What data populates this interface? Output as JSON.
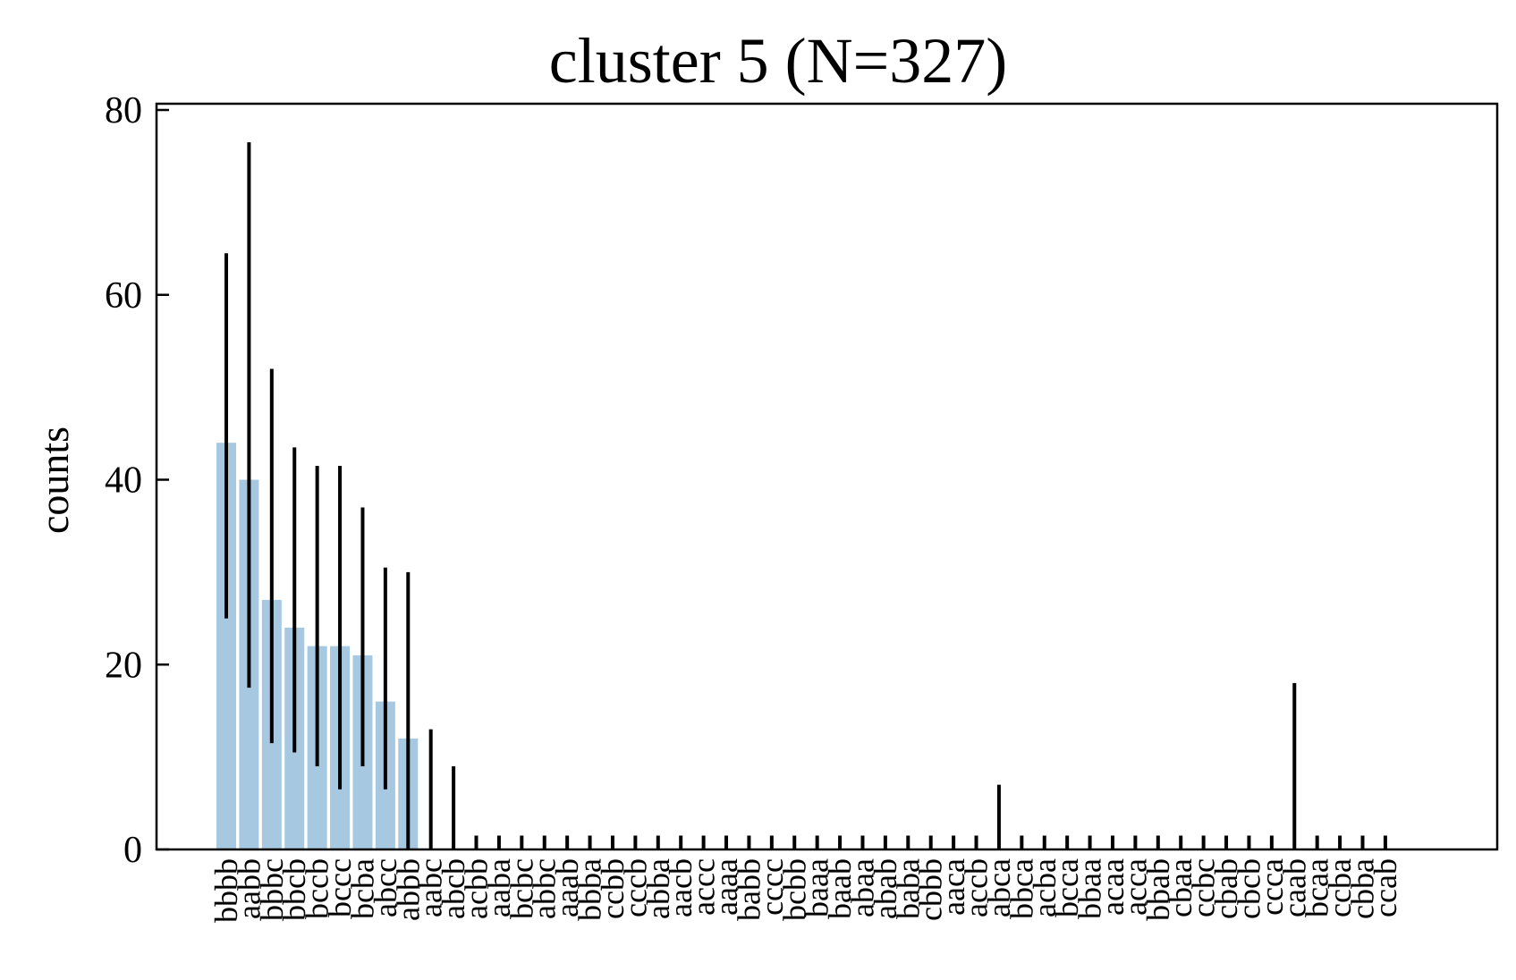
{
  "chart_data": {
    "type": "bar",
    "title": "cluster 5 (N=327)",
    "xlabel": "",
    "ylabel": "counts",
    "ylim": [
      0,
      80
    ],
    "yticks": [
      0,
      20,
      40,
      60,
      80
    ],
    "grid": false,
    "bar_color": "#a6c8e0",
    "errorbar_color": "#000000",
    "categories": [
      "bbbb",
      "aabb",
      "bbbc",
      "bbcb",
      "bccb",
      "bccc",
      "bcba",
      "abcc",
      "abbb",
      "aabc",
      "abcb",
      "acbb",
      "aaba",
      "bcbc",
      "abbc",
      "aaab",
      "bbba",
      "ccbb",
      "cccb",
      "abba",
      "aacb",
      "accc",
      "aaaa",
      "babb",
      "cccc",
      "bcbb",
      "baaa",
      "baab",
      "abaa",
      "abab",
      "baba",
      "cbbb",
      "aaca",
      "accb",
      "abca",
      "bbca",
      "acba",
      "bcca",
      "bbaa",
      "acaa",
      "acca",
      "bbab",
      "cbaa",
      "ccbc",
      "cbab",
      "cbcb",
      "ccca",
      "caab",
      "bcaa",
      "ccba",
      "cbba",
      "ccab"
    ],
    "values": [
      44,
      40,
      27,
      24,
      22,
      22,
      21,
      16,
      12,
      0,
      0,
      0,
      0,
      0,
      0,
      0,
      0,
      0,
      0,
      0,
      0,
      0,
      0,
      0,
      0,
      0,
      0,
      0,
      0,
      0,
      0,
      0,
      0,
      0,
      0,
      0,
      0,
      0,
      0,
      0,
      0,
      0,
      0,
      0,
      0,
      0,
      0,
      0,
      0,
      0,
      0,
      0
    ],
    "error_low": [
      25,
      17.5,
      11.5,
      10.5,
      9,
      6.5,
      9,
      6.5,
      0,
      0,
      0,
      0,
      0,
      0,
      0,
      0,
      0,
      0,
      0,
      0,
      0,
      0,
      0,
      0,
      0,
      0,
      0,
      0,
      0,
      0,
      0,
      0,
      0,
      0,
      0,
      0,
      0,
      0,
      0,
      0,
      0,
      0,
      0,
      0,
      0,
      0,
      0,
      0,
      0,
      0,
      0,
      0
    ],
    "error_high": [
      64.5,
      76.5,
      52,
      43.5,
      41.5,
      41.5,
      37,
      30.5,
      30,
      13,
      9,
      1.5,
      1.5,
      1.5,
      1.5,
      1.5,
      1.5,
      1.5,
      1.5,
      1.5,
      1.5,
      1.5,
      1.5,
      1.5,
      1.5,
      1.5,
      1.5,
      1.5,
      1.5,
      1.5,
      1.5,
      1.5,
      1.5,
      1.5,
      7,
      1.5,
      1.5,
      1.5,
      1.5,
      1.5,
      1.5,
      1.5,
      1.5,
      1.5,
      1.5,
      1.5,
      1.5,
      18,
      1.5,
      1.5,
      1.5,
      1.5
    ]
  }
}
